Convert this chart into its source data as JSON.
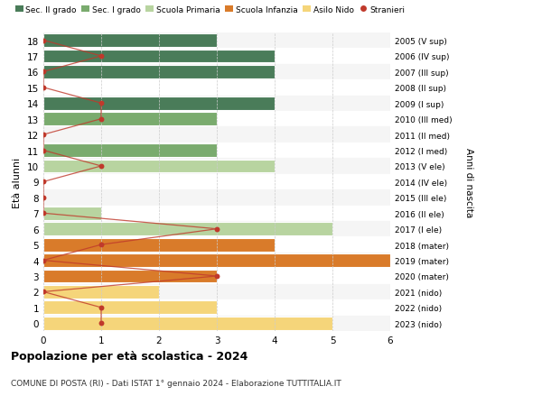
{
  "ages": [
    18,
    17,
    16,
    15,
    14,
    13,
    12,
    11,
    10,
    9,
    8,
    7,
    6,
    5,
    4,
    3,
    2,
    1,
    0
  ],
  "right_labels": [
    "2005 (V sup)",
    "2006 (IV sup)",
    "2007 (III sup)",
    "2008 (II sup)",
    "2009 (I sup)",
    "2010 (III med)",
    "2011 (II med)",
    "2012 (I med)",
    "2013 (V ele)",
    "2014 (IV ele)",
    "2015 (III ele)",
    "2016 (II ele)",
    "2017 (I ele)",
    "2018 (mater)",
    "2019 (mater)",
    "2020 (mater)",
    "2021 (nido)",
    "2022 (nido)",
    "2023 (nido)"
  ],
  "bar_values": [
    3,
    4,
    4,
    0,
    4,
    3,
    0,
    3,
    4,
    0,
    0,
    1,
    5,
    4,
    6,
    3,
    2,
    3,
    5
  ],
  "bar_colors": [
    "#4a7c59",
    "#4a7c59",
    "#4a7c59",
    "#4a7c59",
    "#4a7c59",
    "#7aab6e",
    "#7aab6e",
    "#7aab6e",
    "#b8d4a0",
    "#b8d4a0",
    "#b8d4a0",
    "#b8d4a0",
    "#b8d4a0",
    "#d97b2a",
    "#d97b2a",
    "#d97b2a",
    "#f5d57a",
    "#f5d57a",
    "#f5d57a"
  ],
  "stranieri_values": [
    0,
    1,
    0,
    0,
    1,
    1,
    0,
    0,
    1,
    0,
    0,
    0,
    3,
    1,
    0,
    3,
    0,
    1,
    1
  ],
  "legend_labels": [
    "Sec. II grado",
    "Sec. I grado",
    "Scuola Primaria",
    "Scuola Infanzia",
    "Asilo Nido",
    "Stranieri"
  ],
  "legend_colors": [
    "#4a7c59",
    "#7aab6e",
    "#b8d4a0",
    "#d97b2a",
    "#f5d57a",
    "#c0392b"
  ],
  "title": "Popolazione per età scolastica - 2024",
  "subtitle": "COMUNE DI POSTA (RI) - Dati ISTAT 1° gennaio 2024 - Elaborazione TUTTITALIA.IT",
  "ylabel": "Età alunni",
  "right_ylabel": "Anni di nascita",
  "xlim": [
    0,
    6
  ],
  "xticks": [
    0,
    1,
    2,
    3,
    4,
    5,
    6
  ],
  "bg_color": "#ffffff",
  "bar_height": 0.85,
  "stranieri_color": "#c0392b",
  "line_color": "#c0392b"
}
